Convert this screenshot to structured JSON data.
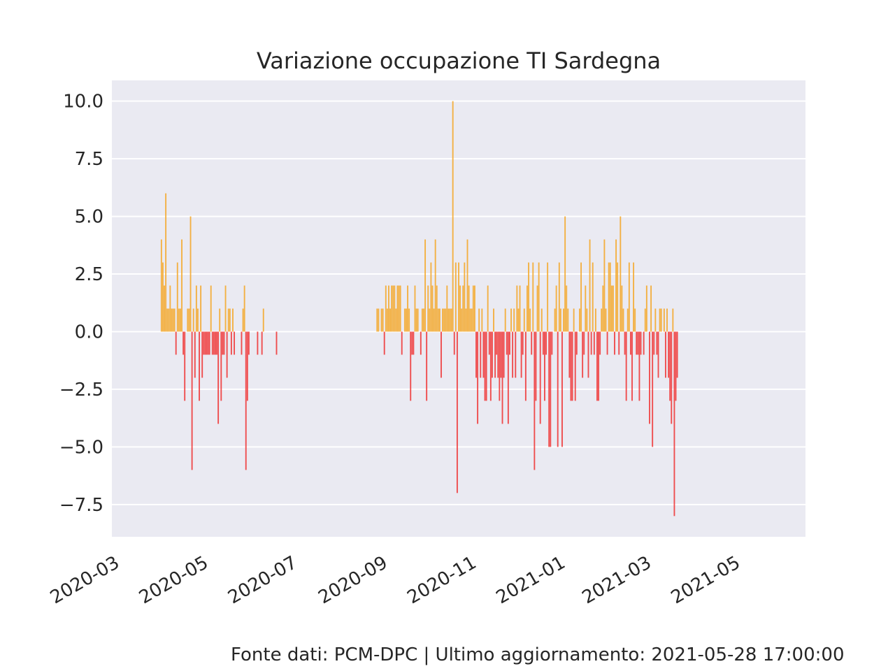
{
  "footer": "Fonte dati: PCM-DPC | Ultimo aggiornamento: 2021-05-28 17:00:00",
  "chart_data": {
    "type": "bar",
    "title": "Variazione occupazione TI Sardegna",
    "xlabel": "",
    "ylabel": "",
    "x_axis": "date",
    "xlim": [
      "2020-02-24",
      "2021-06-14"
    ],
    "ylim": [
      -8.9,
      10.9
    ],
    "grid": true,
    "legend": "none",
    "colors": {
      "positive": "#f5a623",
      "negative": "#f03030",
      "plot_bg": "#eaeaf2",
      "grid": "#ffffff",
      "text": "#262626"
    },
    "x_ticks": [
      "2020-03",
      "2020-05",
      "2020-07",
      "2020-09",
      "2020-11",
      "2021-01",
      "2021-03",
      "2021-05"
    ],
    "y_ticks": [
      {
        "value": 10.0,
        "label": "10.0"
      },
      {
        "value": 7.5,
        "label": "7.5"
      },
      {
        "value": 5.0,
        "label": "5.0"
      },
      {
        "value": 2.5,
        "label": "2.5"
      },
      {
        "value": 0.0,
        "label": "0.0"
      },
      {
        "value": -2.5,
        "label": "−2.5"
      },
      {
        "value": -5.0,
        "label": "−5.0"
      },
      {
        "value": -7.5,
        "label": "−7.5"
      }
    ],
    "series": [
      {
        "start_date": "2020-03-29",
        "values": [
          4,
          3,
          2,
          6,
          1,
          1,
          2,
          1,
          1,
          1,
          -1,
          3,
          1,
          1,
          4,
          -1,
          -3,
          0,
          1,
          1,
          5,
          -6,
          1,
          -2,
          2,
          1,
          -3,
          2,
          -2,
          -1,
          -1,
          -1,
          -1,
          -1,
          2,
          -1,
          -1,
          -1,
          -1,
          -4,
          1,
          -3,
          -1,
          -1,
          2,
          -2,
          1,
          1,
          -1,
          1,
          -1,
          0,
          0,
          0,
          0,
          -1,
          1,
          2,
          -6,
          -3,
          -1,
          0,
          0,
          0,
          0,
          0,
          -1,
          0,
          0,
          -1,
          1,
          0,
          0,
          0,
          0,
          0,
          0,
          0,
          0,
          -1
        ]
      },
      {
        "start_date": "2020-08-24",
        "values": [
          1,
          1,
          0,
          1,
          1,
          -1,
          2,
          1,
          2,
          1,
          2,
          2,
          2,
          1,
          2,
          2,
          2,
          -1,
          0,
          1,
          1,
          2,
          1,
          -3,
          -1,
          -1,
          2,
          1,
          1,
          0,
          -1,
          1,
          1,
          4,
          -3,
          2,
          1,
          3,
          2,
          1,
          4,
          2,
          1,
          1,
          -2,
          1,
          1,
          1,
          2,
          1,
          1,
          1,
          10,
          -1,
          3,
          -7,
          3,
          2,
          1,
          2,
          3,
          1,
          4,
          2,
          1,
          1,
          2,
          2,
          -2,
          -4,
          1,
          -2,
          1,
          -2,
          -3,
          -3,
          2,
          -1,
          -3,
          -2,
          1,
          -2,
          -1,
          -2,
          -3,
          -2,
          -4,
          -2,
          1,
          -1,
          -4,
          -1,
          1,
          -2,
          1,
          -2,
          2,
          1,
          2,
          -2,
          -1,
          1,
          -3,
          2,
          3,
          1,
          -1,
          3,
          -6,
          -3,
          2,
          3,
          -4,
          1,
          -1,
          -3,
          -1,
          3,
          -5,
          -5,
          -1,
          0,
          1,
          2,
          -5,
          3,
          1,
          -5,
          1,
          5,
          2,
          1,
          -2,
          -3,
          -3,
          1,
          -3,
          -1,
          0,
          1,
          3,
          -2,
          -1,
          2,
          1,
          -2,
          4,
          -1,
          3,
          -1,
          1,
          -3,
          -3,
          -1,
          1,
          2,
          4,
          1,
          -1,
          3,
          3,
          2,
          2,
          -1,
          4,
          3,
          -1,
          5,
          2,
          1,
          -1,
          -3,
          1,
          3,
          -1,
          -3,
          3,
          1,
          -1,
          -1,
          -3,
          -1,
          0,
          -1,
          1,
          2,
          0,
          -4,
          2,
          -5,
          -1,
          1,
          -1,
          -2,
          1,
          1,
          0,
          1,
          -2,
          1,
          -2,
          -3,
          -4,
          1,
          -8,
          -3,
          -2
        ]
      }
    ]
  }
}
